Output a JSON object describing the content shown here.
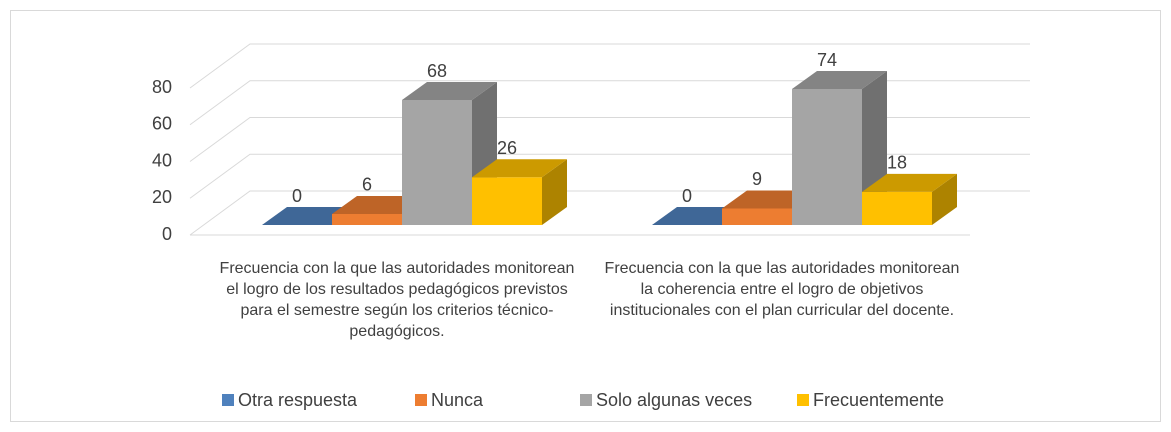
{
  "chart_data": {
    "type": "bar3d",
    "categories": [
      "Frecuencia con la que las autoridades monitorean el logro de los resultados pedagógicos previstos para el semestre según los criterios técnico-pedagógicos.",
      "Frecuencia con la que las autoridades monitorean la coherencia entre el logro de objetivos institucionales con el plan curricular del docente."
    ],
    "series": [
      {
        "name": "Otra respuesta",
        "color": "#4f81bd",
        "values": [
          0,
          0
        ]
      },
      {
        "name": "Nunca",
        "color": "#ed7d31",
        "values": [
          6,
          9
        ]
      },
      {
        "name": "Solo algunas veces",
        "color": "#a5a5a5",
        "values": [
          68,
          74
        ]
      },
      {
        "name": "Frecuentemente",
        "color": "#ffc000",
        "values": [
          26,
          18
        ]
      }
    ],
    "ylim": [
      0,
      80
    ],
    "yticks": [
      0,
      20,
      40,
      60,
      80
    ],
    "grid": true,
    "legend": "bottom"
  }
}
